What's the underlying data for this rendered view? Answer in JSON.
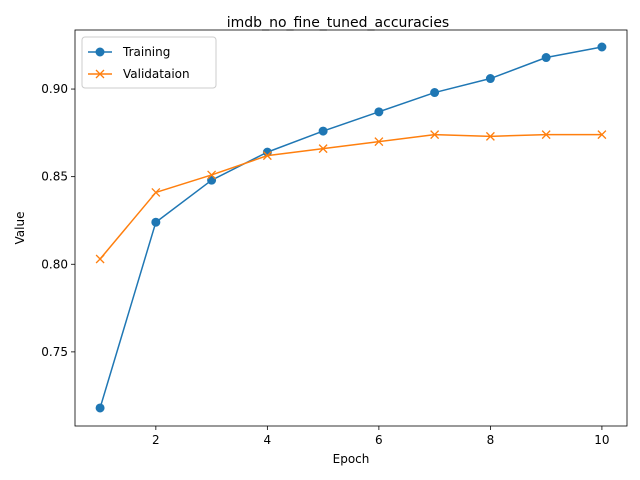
{
  "chart_data": {
    "type": "line",
    "title": "imdb_no_fine_tuned_accuracies",
    "xlabel": "Epoch",
    "ylabel": "Value",
    "x": [
      1,
      2,
      3,
      4,
      5,
      6,
      7,
      8,
      9,
      10
    ],
    "xlim": [
      0.55,
      10.45
    ],
    "ylim": [
      0.7077,
      0.9337
    ],
    "xticks": [
      2,
      4,
      6,
      8,
      10
    ],
    "yticks": [
      0.75,
      0.8,
      0.85,
      0.9
    ],
    "xtick_labels": [
      "2",
      "4",
      "6",
      "8",
      "10"
    ],
    "ytick_labels": [
      "0.75",
      "0.80",
      "0.85",
      "0.90"
    ],
    "grid": false,
    "legend_position": "top-left",
    "series": [
      {
        "name": "Training",
        "values": [
          0.718,
          0.824,
          0.848,
          0.864,
          0.876,
          0.887,
          0.898,
          0.906,
          0.918,
          0.924
        ],
        "color": "#1f77b4",
        "marker": "circle"
      },
      {
        "name": "Validataion",
        "values": [
          0.803,
          0.841,
          0.851,
          0.862,
          0.866,
          0.87,
          0.874,
          0.873,
          0.874,
          0.874
        ],
        "color": "#ff7f0e",
        "marker": "x"
      }
    ]
  }
}
